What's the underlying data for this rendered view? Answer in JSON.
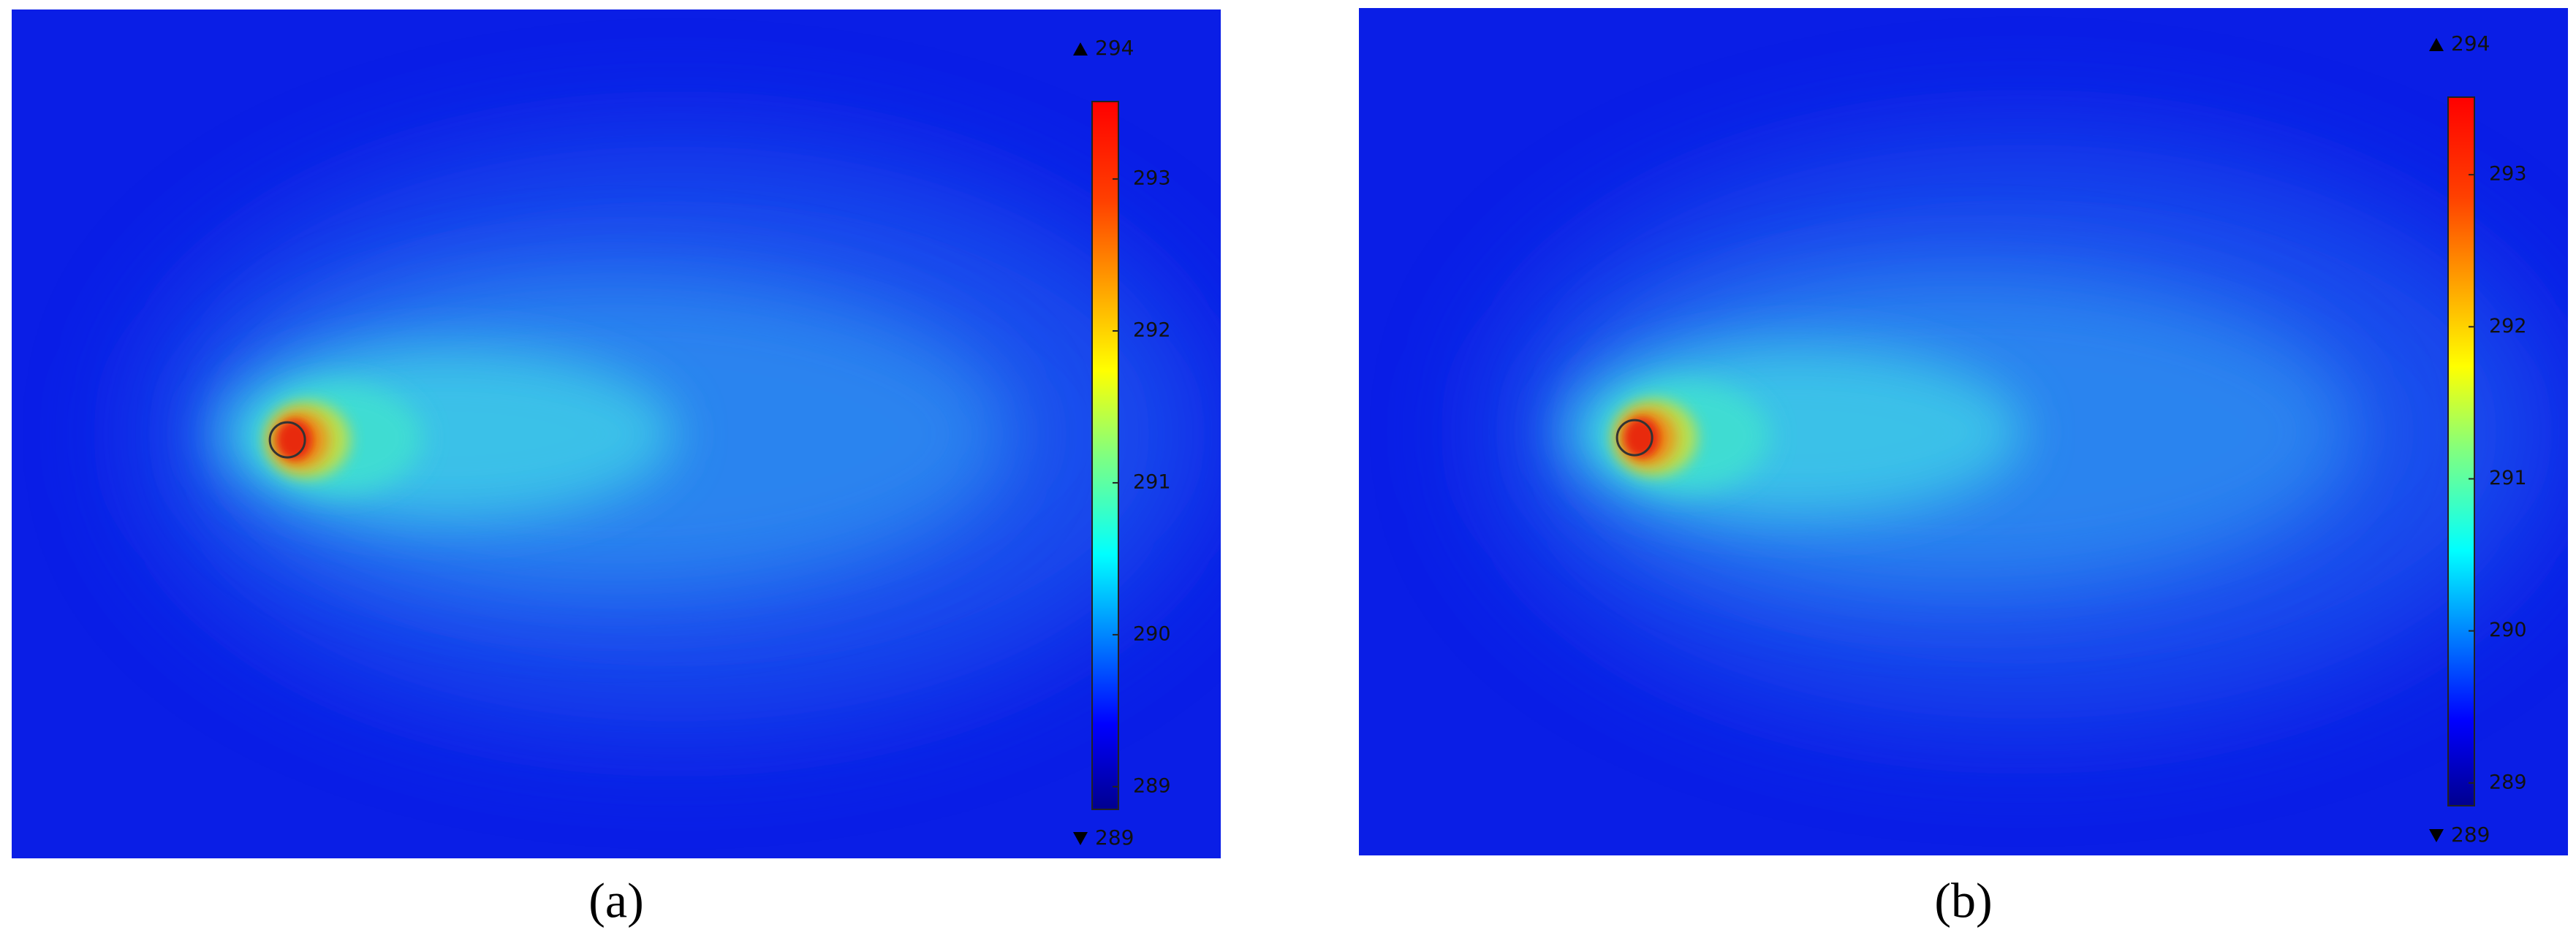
{
  "chart_data": [
    {
      "type": "field",
      "label": "(a)",
      "clim": [
        288.85,
        293.51
      ],
      "colorbar_ticks": [
        289,
        290,
        291,
        292,
        293
      ],
      "max": 294,
      "min": 289
    },
    {
      "type": "field",
      "label": "(b)",
      "clim": [
        288.85,
        293.51
      ],
      "colorbar_ticks": [
        289,
        290,
        291,
        292,
        293
      ],
      "max": 294,
      "min": 289
    }
  ]
}
